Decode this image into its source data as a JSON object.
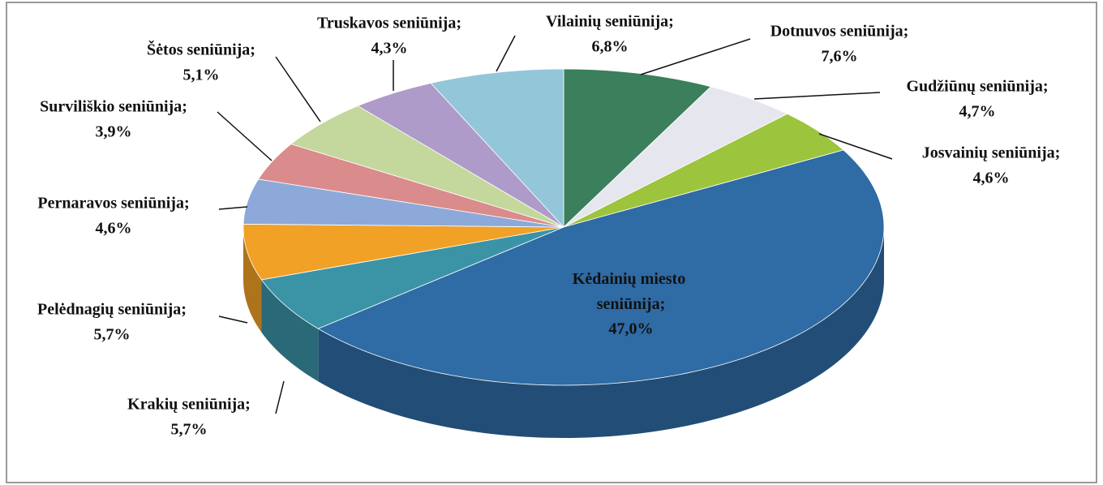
{
  "chart_data": {
    "type": "pie3d",
    "categories": [
      "Dotnuvos seniūnija;",
      "Gudžiūnų  seniūnija;",
      "Josvainių seniūnija;",
      "Kėdainių miesto seniūnija;",
      "Krakių seniūnija;",
      "Pelėdnagių seniūnija;",
      "Pernaravos seniūnija;",
      "Surviliškio  seniūnija;",
      "Šėtos seniūnija;",
      "Truskavos  seniūnija;",
      "Vilainių  seniūnija;"
    ],
    "values": [
      7.6,
      4.7,
      4.6,
      47.0,
      5.7,
      5.7,
      4.6,
      3.9,
      5.1,
      4.3,
      6.8
    ],
    "value_labels": [
      "7,6%",
      "4,7%",
      "4,6%",
      "47,0%",
      "5,7%",
      "5,7%",
      "4,6%",
      "3,9%",
      "5,1%",
      "4,3%",
      "6,8%"
    ],
    "colors": [
      "#3b7f5c",
      "#e6e7ee",
      "#9cc43c",
      "#2f6ba4",
      "#3b93a6",
      "#f0a126",
      "#8ca9d9",
      "#da8b8b",
      "#c4d79c",
      "#ae9bc9",
      "#93c6d9"
    ]
  }
}
